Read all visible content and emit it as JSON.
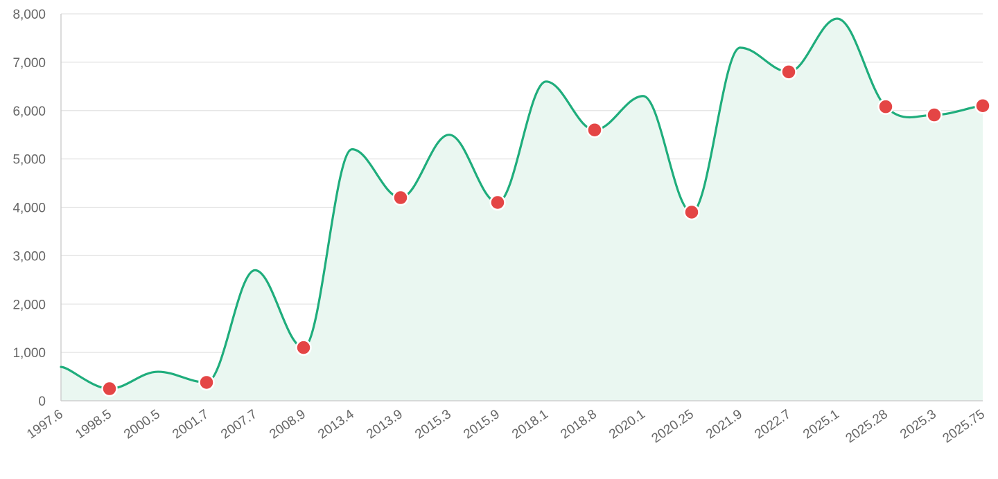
{
  "chart_data": {
    "type": "line",
    "title": "",
    "xlabel": "",
    "ylabel": "",
    "x": [
      "1997.6",
      "1998.5",
      "2000.5",
      "2001.7",
      "2007.7",
      "2008.9",
      "2013.4",
      "2013.9",
      "2015.3",
      "2015.9",
      "2018.1",
      "2018.8",
      "2020.1",
      "2020.25",
      "2021.9",
      "2022.7",
      "2025.1",
      "2025.28",
      "2025.3",
      "2025.75"
    ],
    "series": [
      {
        "values": [
          700,
          250,
          600,
          380,
          2700,
          1100,
          5200,
          4200,
          5500,
          4100,
          6600,
          5600,
          6300,
          3900,
          7300,
          6800,
          7900,
          6080,
          5910,
          6100
        ],
        "markers": [
          false,
          true,
          false,
          true,
          false,
          true,
          false,
          true,
          false,
          true,
          false,
          true,
          false,
          true,
          false,
          true,
          false,
          true,
          true,
          true
        ]
      }
    ],
    "ylim": [
      0,
      8000
    ],
    "yticks": [
      0,
      1000,
      2000,
      3000,
      4000,
      5000,
      6000,
      7000,
      8000
    ],
    "ytick_labels": [
      "0",
      "1,000",
      "2,000",
      "3,000",
      "4,000",
      "5,000",
      "6,000",
      "7,000",
      "8,000"
    ],
    "grid": true,
    "legend": "none",
    "colors": {
      "line": "#1fad7c",
      "fill": "#eaf7f1",
      "marker": "#e44545",
      "marker_edge": "#ffffff"
    }
  }
}
